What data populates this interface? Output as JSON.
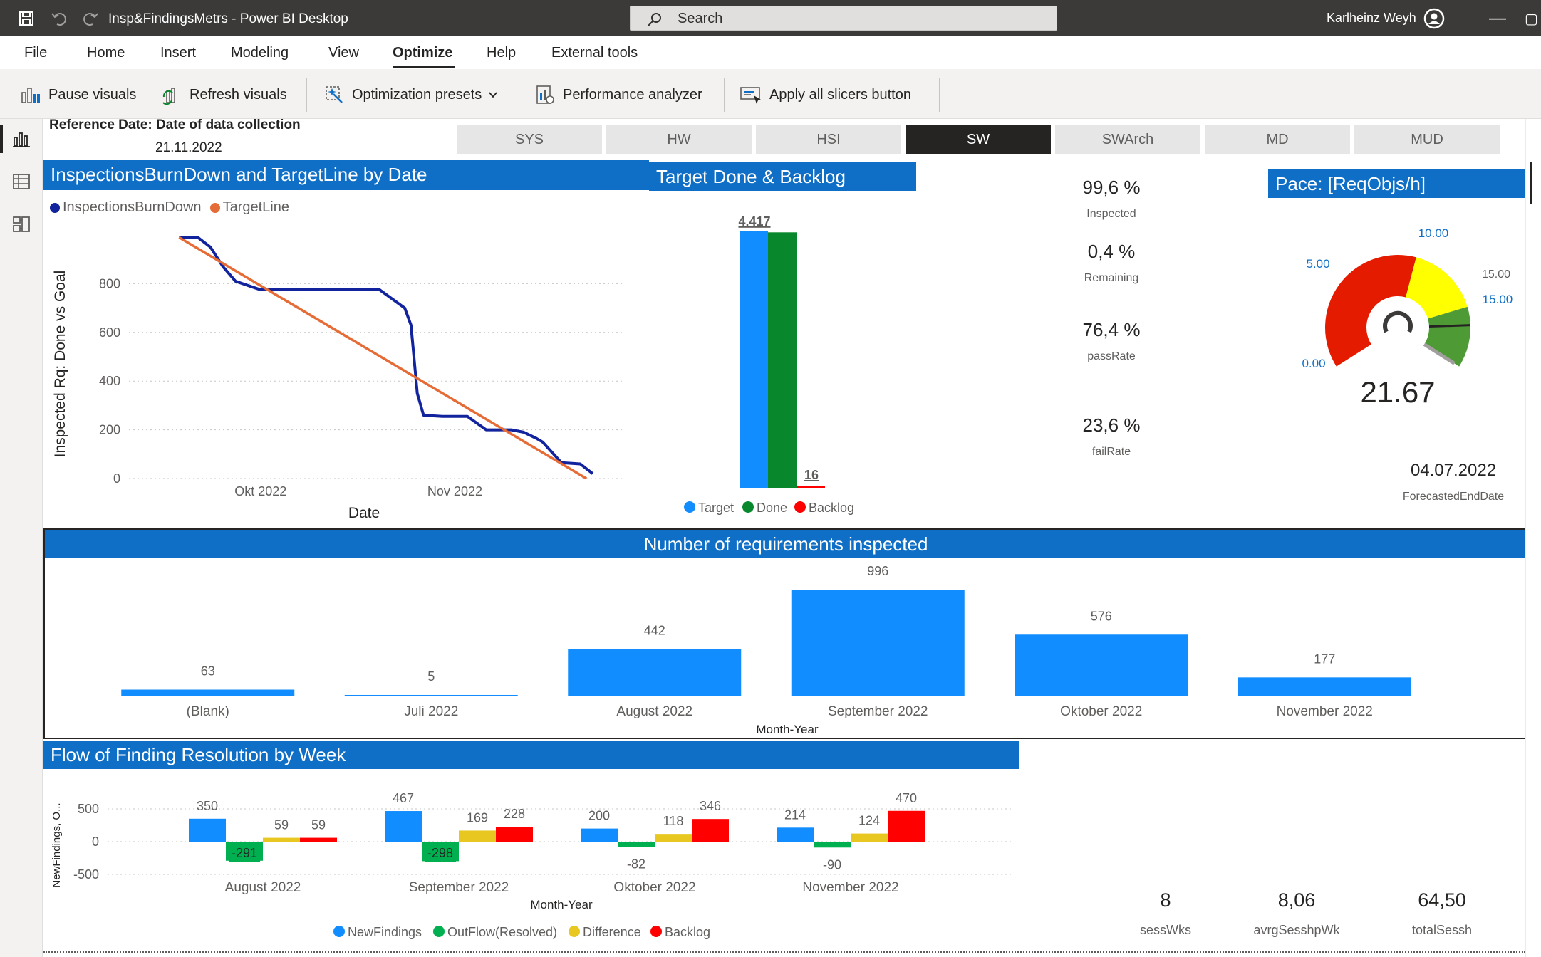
{
  "window": {
    "title": "Insp&FindingsMetrs - Power BI Desktop",
    "search_placeholder": "Search",
    "user": "Karlheinz Weyh"
  },
  "menu": [
    "File",
    "Home",
    "Insert",
    "Modeling",
    "View",
    "Optimize",
    "Help",
    "External tools"
  ],
  "menu_active": "Optimize",
  "ribbon": {
    "pause": "Pause visuals",
    "refresh": "Refresh visuals",
    "presets": "Optimization presets",
    "perf": "Performance analyzer",
    "apply": "Apply all slicers button"
  },
  "reference": {
    "label": "Reference Date: Date of data collection",
    "date": "21.11.2022"
  },
  "tabs": [
    "SYS",
    "HW",
    "HSI",
    "SW",
    "SWArch",
    "MD",
    "MUD"
  ],
  "tabs_active": "SW",
  "burndown": {
    "title": "InspectionsBurnDown and TargetLine by Date",
    "legend": [
      "InspectionsBurnDown",
      "TargetLine"
    ],
    "ylabel": "Inspected Rq: Done vs Goal",
    "xlabel": "Date",
    "yticks": [
      "0",
      "200",
      "400",
      "600",
      "800"
    ],
    "xticks": [
      "Okt 2022",
      "Nov 2022"
    ]
  },
  "target_done": {
    "title": "Target Done & Backlog",
    "target_label": "4.417",
    "backlog_label": "16",
    "legend": [
      "Target",
      "Done",
      "Backlog"
    ]
  },
  "kpis": [
    {
      "value": "99,6 %",
      "label": "Inspected"
    },
    {
      "value": "0,4 %",
      "label": "Remaining"
    },
    {
      "value": "76,4 %",
      "label": "passRate"
    },
    {
      "value": "23,6 %",
      "label": "failRate"
    }
  ],
  "pace": {
    "title": "Pace: [ReqObjs/h]",
    "value": "21.67",
    "labels": {
      "min": "0.00",
      "a": "5.00",
      "b": "10.00",
      "c": "15.00",
      "d": "15.00"
    }
  },
  "forecast": {
    "value": "04.07.2022",
    "label": "ForecastedEndDate"
  },
  "req_inspected": {
    "title": "Number of requirements inspected",
    "xlabel": "Month-Year"
  },
  "flow": {
    "title": "Flow of Finding Resolution by Week",
    "ylabel": "NewFindings, O...",
    "xlabel": "Month-Year",
    "yticks": [
      "500",
      "0",
      "-500"
    ],
    "legend": [
      "NewFindings",
      "OutFlow(Resolved)",
      "Difference",
      "Backlog"
    ]
  },
  "bottom_kpis": [
    {
      "value": "8",
      "label": "sessWks"
    },
    {
      "value": "8,06",
      "label": "avrgSesshpWk"
    },
    {
      "value": "64,50",
      "label": "totalSessh"
    }
  ],
  "colors": {
    "header_blue": "#0f6fc6",
    "bar_blue": "#118dff",
    "burndown_navy": "#12239e",
    "target_orange": "#e66c37",
    "done_green": "#09872c",
    "backlog_red": "#ff0000",
    "diff_yellow": "#e8c820",
    "outflow_green": "#00b050"
  },
  "chart_data": [
    {
      "type": "line",
      "title": "InspectionsBurnDown and TargetLine by Date",
      "xlabel": "Date",
      "ylabel": "Inspected Rq: Done vs Goal",
      "ylim": [
        0,
        1000
      ],
      "x_ticks": [
        "Okt 2022",
        "Nov 2022"
      ],
      "series": [
        {
          "name": "InspectionsBurnDown",
          "x": [
            "2022-09-18",
            "2022-09-21",
            "2022-09-23",
            "2022-09-25",
            "2022-09-27",
            "2022-10-01",
            "2022-10-05",
            "2022-10-10",
            "2022-10-15",
            "2022-10-20",
            "2022-10-24",
            "2022-10-25",
            "2022-10-26",
            "2022-10-27",
            "2022-10-30",
            "2022-11-03",
            "2022-11-06",
            "2022-11-10",
            "2022-11-12",
            "2022-11-14",
            "2022-11-15",
            "2022-11-18",
            "2022-11-21",
            "2022-11-23"
          ],
          "values": [
            990,
            990,
            950,
            870,
            810,
            775,
            775,
            775,
            775,
            775,
            700,
            630,
            350,
            260,
            255,
            255,
            200,
            200,
            190,
            165,
            150,
            65,
            60,
            20
          ]
        },
        {
          "name": "TargetLine",
          "x": [
            "2022-09-18",
            "2022-11-22"
          ],
          "values": [
            990,
            0
          ]
        }
      ]
    },
    {
      "type": "bar",
      "title": "Target Done & Backlog",
      "categories": [
        "Target",
        "Done",
        "Backlog"
      ],
      "values": [
        4417,
        4401,
        16
      ]
    },
    {
      "type": "bar",
      "title": "Number of requirements inspected",
      "xlabel": "Month-Year",
      "categories": [
        "(Blank)",
        "Juli 2022",
        "August 2022",
        "September 2022",
        "Oktober 2022",
        "November 2022"
      ],
      "values": [
        63,
        5,
        442,
        996,
        576,
        177
      ]
    },
    {
      "type": "bar",
      "title": "Flow of Finding Resolution by Week",
      "xlabel": "Month-Year",
      "ylabel": "NewFindings, O...",
      "ylim": [
        -500,
        500
      ],
      "categories": [
        "August 2022",
        "September 2022",
        "Oktober 2022",
        "November 2022"
      ],
      "series": [
        {
          "name": "NewFindings",
          "values": [
            350,
            467,
            200,
            214
          ]
        },
        {
          "name": "OutFlow(Resolved)",
          "values": [
            -291,
            -298,
            -82,
            -90
          ]
        },
        {
          "name": "Difference",
          "values": [
            59,
            169,
            118,
            124
          ]
        },
        {
          "name": "Backlog",
          "values": [
            59,
            228,
            346,
            470
          ]
        }
      ]
    },
    {
      "type": "gauge",
      "title": "Pace: [ReqObjs/h]",
      "min": 0,
      "max": 15,
      "value": 21.67,
      "ticks": [
        0,
        5,
        10,
        15
      ]
    }
  ]
}
